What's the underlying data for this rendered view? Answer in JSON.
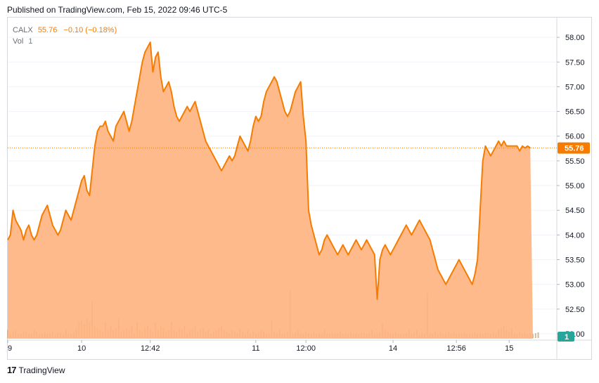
{
  "header": {
    "published": "Published on TradingView.com, Feb 15, 2022 09:46 UTC-5"
  },
  "legend": {
    "symbol": "CALX",
    "last": "55.76",
    "change": "−0.10 (−0.18%)",
    "vol_label": "Vol",
    "vol_value": "1"
  },
  "footer": {
    "brand": "TradingView",
    "logo_glyph": "17"
  },
  "colors": {
    "line": "#f57c00",
    "area": "#ffb380",
    "volume": "#c8a884",
    "last_label_bg": "#f57c00",
    "vol_label_bg": "#26a69a"
  },
  "chart_data": {
    "type": "area",
    "symbol": "CALX",
    "last_price_label": "55.76",
    "volume_axis_label": "1",
    "ylim": [
      51.9,
      58.4
    ],
    "y_ticks": [
      "58.00",
      "57.50",
      "57.00",
      "56.50",
      "56.00",
      "55.50",
      "55.00",
      "54.50",
      "54.00",
      "53.50",
      "53.00",
      "52.50",
      "52.00"
    ],
    "x_ticks": [
      "9",
      "10",
      "12:42",
      "11",
      "12:00",
      "14",
      "12:56",
      "15"
    ],
    "x_tick_index": [
      0,
      28,
      54,
      94,
      113,
      146,
      170,
      190
    ],
    "n_points": 200,
    "price": [
      53.9,
      54.0,
      54.5,
      54.3,
      54.2,
      54.1,
      53.9,
      54.1,
      54.2,
      54.0,
      53.9,
      54.0,
      54.2,
      54.4,
      54.5,
      54.6,
      54.4,
      54.2,
      54.1,
      54.0,
      54.1,
      54.3,
      54.5,
      54.4,
      54.3,
      54.5,
      54.7,
      54.9,
      55.1,
      55.2,
      54.9,
      54.8,
      55.3,
      55.8,
      56.1,
      56.2,
      56.2,
      56.3,
      56.1,
      56.0,
      55.9,
      56.2,
      56.3,
      56.4,
      56.5,
      56.3,
      56.1,
      56.3,
      56.6,
      56.9,
      57.2,
      57.5,
      57.7,
      57.8,
      57.9,
      57.3,
      57.6,
      57.7,
      57.2,
      56.9,
      57.0,
      57.1,
      56.9,
      56.6,
      56.4,
      56.3,
      56.4,
      56.5,
      56.6,
      56.5,
      56.6,
      56.7,
      56.5,
      56.3,
      56.1,
      55.9,
      55.8,
      55.7,
      55.6,
      55.5,
      55.4,
      55.3,
      55.4,
      55.5,
      55.6,
      55.5,
      55.6,
      55.8,
      56.0,
      55.9,
      55.8,
      55.7,
      55.9,
      56.2,
      56.4,
      56.3,
      56.4,
      56.7,
      56.9,
      57.0,
      57.1,
      57.2,
      57.1,
      56.9,
      56.7,
      56.5,
      56.4,
      56.5,
      56.7,
      56.9,
      57.0,
      57.1,
      56.4,
      55.9,
      54.5,
      54.2,
      54.0,
      53.8,
      53.6,
      53.7,
      53.9,
      54.0,
      53.9,
      53.8,
      53.7,
      53.6,
      53.7,
      53.8,
      53.7,
      53.6,
      53.7,
      53.8,
      53.9,
      53.8,
      53.7,
      53.8,
      53.9,
      53.8,
      53.7,
      53.6,
      52.7,
      53.5,
      53.7,
      53.8,
      53.7,
      53.6,
      53.7,
      53.8,
      53.9,
      54.0,
      54.1,
      54.2,
      54.1,
      54.0,
      54.1,
      54.2,
      54.3,
      54.2,
      54.1,
      54.0,
      53.9,
      53.7,
      53.5,
      53.3,
      53.2,
      53.1,
      53.0,
      53.1,
      53.2,
      53.3,
      53.4,
      53.5,
      53.4,
      53.3,
      53.2,
      53.1,
      53.0,
      53.2,
      53.5,
      54.5,
      55.5,
      55.8,
      55.7,
      55.6,
      55.7,
      55.8,
      55.9,
      55.8,
      55.9,
      55.8,
      55.8,
      55.8,
      55.8,
      55.8,
      55.7,
      55.8,
      55.76,
      55.8,
      55.76
    ],
    "volume": [
      0.1,
      0.05,
      0.08,
      0.1,
      0.06,
      0.05,
      0.07,
      0.09,
      0.05,
      0.06,
      0.1,
      0.08,
      0.05,
      0.06,
      0.07,
      0.05,
      0.06,
      0.08,
      0.05,
      0.07,
      0.06,
      0.05,
      0.1,
      0.06,
      0.05,
      0.07,
      0.12,
      0.2,
      0.22,
      0.18,
      0.25,
      0.2,
      0.45,
      0.15,
      0.12,
      0.1,
      0.08,
      0.2,
      0.1,
      0.15,
      0.1,
      0.12,
      0.25,
      0.08,
      0.1,
      0.12,
      0.1,
      0.15,
      0.06,
      0.2,
      0.1,
      0.08,
      0.12,
      0.15,
      0.1,
      0.08,
      0.2,
      0.1,
      0.15,
      0.12,
      0.08,
      0.1,
      0.2,
      0.1,
      0.08,
      0.12,
      0.1,
      0.15,
      0.06,
      0.1,
      0.12,
      0.15,
      0.08,
      0.1,
      0.12,
      0.08,
      0.1,
      0.06,
      0.08,
      0.1,
      0.12,
      0.15,
      0.1,
      0.08,
      0.06,
      0.1,
      0.08,
      0.06,
      0.12,
      0.08,
      0.05,
      0.1,
      0.06,
      0.08,
      0.05,
      0.06,
      0.1,
      0.08,
      0.05,
      0.06,
      0.22,
      0.08,
      0.06,
      0.1,
      0.05,
      0.06,
      0.08,
      0.6,
      0.05,
      0.07,
      0.1,
      0.06,
      0.05,
      0.08,
      0.06,
      0.05,
      0.07,
      0.05,
      0.06,
      0.05,
      0.1,
      0.05,
      0.06,
      0.07,
      0.05,
      0.06,
      0.08,
      0.05,
      0.06,
      0.05,
      0.07,
      0.05,
      0.06,
      0.05,
      0.06,
      0.07,
      0.05,
      0.06,
      0.1,
      0.05,
      0.06,
      0.07,
      0.18,
      0.1,
      0.08,
      0.06,
      0.05,
      0.07,
      0.05,
      0.06,
      0.05,
      0.06,
      0.1,
      0.05,
      0.07,
      0.1,
      0.05,
      0.06,
      0.05,
      0.55,
      0.05,
      0.06,
      0.08,
      0.05,
      0.07,
      0.05,
      0.06,
      0.08,
      0.05,
      0.07,
      0.05,
      0.06,
      0.05,
      0.07,
      0.05,
      0.06,
      0.05,
      0.07,
      0.05,
      0.06,
      0.05,
      0.07,
      0.06,
      0.05,
      0.07,
      0.05,
      0.1,
      0.12,
      0.15,
      0.1,
      0.08,
      0.12,
      0.06,
      0.05,
      0.07,
      0.05,
      0.06,
      0.05,
      0.06,
      0.05,
      0.06,
      0.07
    ]
  }
}
